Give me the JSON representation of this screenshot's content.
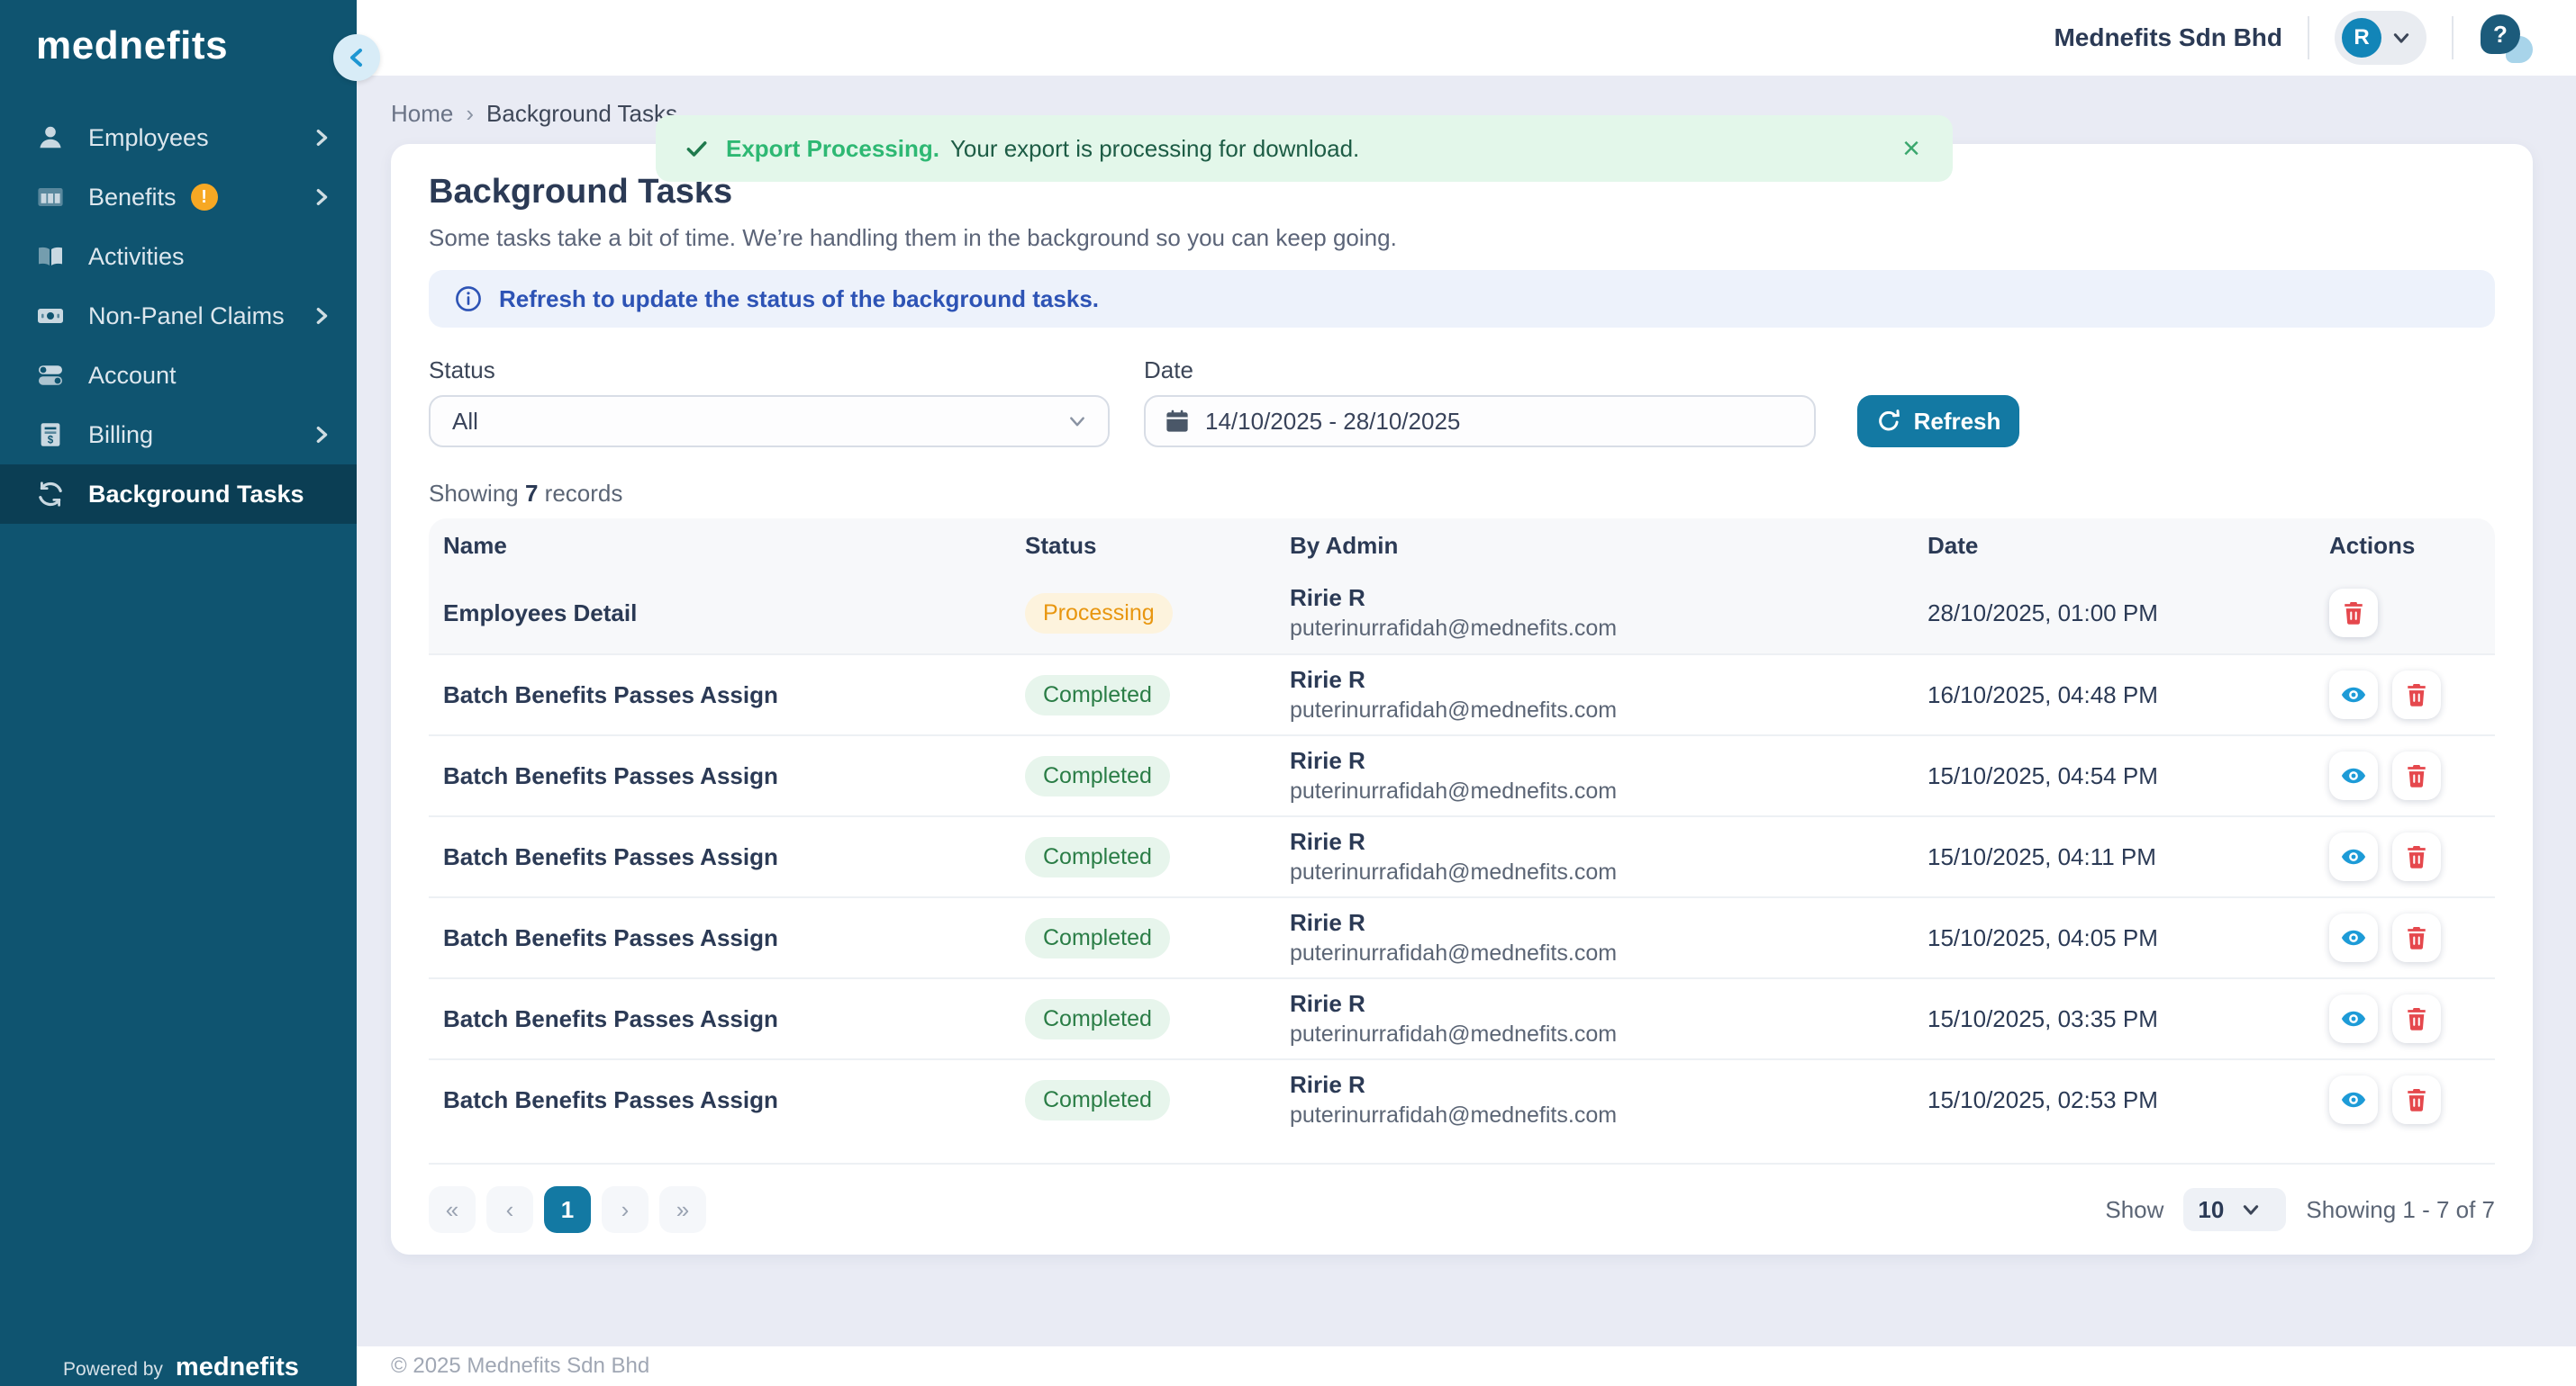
{
  "colors": {
    "sidebar_bg": "#0F5470",
    "sidebar_active_bg": "#0B3E54",
    "primary_teal": "#1379A3",
    "avatar_blue": "#1285B8",
    "toast_bg": "#E3F7EA",
    "toast_title_green": "#2EB873",
    "info_bg": "#EDF2FB",
    "info_blue": "#2D53B5",
    "processing_text": "#E8960F",
    "processing_bg": "#FDF3DD",
    "completed_text": "#2A7D46",
    "completed_bg": "#E7F5EC",
    "view_blue": "#1D9BD7",
    "delete_red": "#E5484D",
    "warning_badge": "#F7A823"
  },
  "sidebar": {
    "logo": "mednefits",
    "items": [
      {
        "label": "Employees",
        "icon": "person-icon",
        "chevron": true
      },
      {
        "label": "Benefits",
        "icon": "columns-icon",
        "chevron": true,
        "badge": "!"
      },
      {
        "label": "Activities",
        "icon": "book-icon",
        "chevron": false
      },
      {
        "label": "Non-Panel Claims",
        "icon": "cash-icon",
        "chevron": true
      },
      {
        "label": "Account",
        "icon": "toggles-icon",
        "chevron": false
      },
      {
        "label": "Billing",
        "icon": "invoice-icon",
        "chevron": true
      },
      {
        "label": "Background Tasks",
        "icon": "sync-icon",
        "chevron": false,
        "active": true
      }
    ],
    "powered_by": "Powered by",
    "powered_logo": "mednefits"
  },
  "header": {
    "company": "Mednefits Sdn Bhd",
    "avatar_letter": "R",
    "help_glyph": "?"
  },
  "breadcrumb": {
    "home": "Home",
    "separator": "›",
    "current": "Background Tasks"
  },
  "toast": {
    "title": "Export Processing.",
    "message": "Your export is processing for download.",
    "close": "×"
  },
  "page": {
    "title": "Background Tasks",
    "subtitle": "Some tasks take a bit of time. We’re handling them in the background so you can keep going.",
    "info": "Refresh to update the status of the background tasks."
  },
  "filters": {
    "status_label": "Status",
    "status_value": "All",
    "date_label": "Date",
    "date_value": "14/10/2025 - 28/10/2025",
    "refresh_label": "Refresh"
  },
  "records": {
    "prefix": "Showing",
    "count": "7",
    "suffix": "records"
  },
  "table": {
    "headers": [
      "Name",
      "Status",
      "By Admin",
      "Date",
      "Actions"
    ],
    "rows": [
      {
        "name": "Employees Detail",
        "status": "Processing",
        "admin_name": "Ririe R",
        "admin_email": "puterinurrafidah@mednefits.com",
        "date": "28/10/2025, 01:00 PM",
        "actions": [
          "delete"
        ],
        "highlight": true
      },
      {
        "name": "Batch Benefits Passes Assign",
        "status": "Completed",
        "admin_name": "Ririe R",
        "admin_email": "puterinurrafidah@mednefits.com",
        "date": "16/10/2025, 04:48 PM",
        "actions": [
          "view",
          "delete"
        ]
      },
      {
        "name": "Batch Benefits Passes Assign",
        "status": "Completed",
        "admin_name": "Ririe R",
        "admin_email": "puterinurrafidah@mednefits.com",
        "date": "15/10/2025, 04:54 PM",
        "actions": [
          "view",
          "delete"
        ]
      },
      {
        "name": "Batch Benefits Passes Assign",
        "status": "Completed",
        "admin_name": "Ririe R",
        "admin_email": "puterinurrafidah@mednefits.com",
        "date": "15/10/2025, 04:11 PM",
        "actions": [
          "view",
          "delete"
        ]
      },
      {
        "name": "Batch Benefits Passes Assign",
        "status": "Completed",
        "admin_name": "Ririe R",
        "admin_email": "puterinurrafidah@mednefits.com",
        "date": "15/10/2025, 04:05 PM",
        "actions": [
          "view",
          "delete"
        ]
      },
      {
        "name": "Batch Benefits Passes Assign",
        "status": "Completed",
        "admin_name": "Ririe R",
        "admin_email": "puterinurrafidah@mednefits.com",
        "date": "15/10/2025, 03:35 PM",
        "actions": [
          "view",
          "delete"
        ]
      },
      {
        "name": "Batch Benefits Passes Assign",
        "status": "Completed",
        "admin_name": "Ririe R",
        "admin_email": "puterinurrafidah@mednefits.com",
        "date": "15/10/2025, 02:53 PM",
        "actions": [
          "view",
          "delete"
        ]
      }
    ]
  },
  "pagination": {
    "first": "«",
    "prev": "‹",
    "page": "1",
    "next": "›",
    "last": "»",
    "show_label": "Show",
    "page_size": "10",
    "range_text": "Showing 1 - 7 of 7"
  },
  "footer": {
    "copyright": "© 2025 Mednefits Sdn Bhd"
  }
}
